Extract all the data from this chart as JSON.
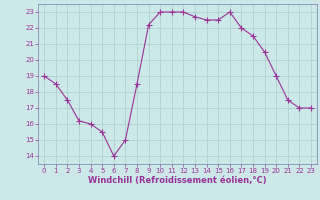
{
  "x": [
    0,
    1,
    2,
    3,
    4,
    5,
    6,
    7,
    8,
    9,
    10,
    11,
    12,
    13,
    14,
    15,
    16,
    17,
    18,
    19,
    20,
    21,
    22,
    23
  ],
  "y": [
    19,
    18.5,
    17.5,
    16.2,
    16.0,
    15.5,
    14.0,
    15.0,
    18.5,
    22.2,
    23.0,
    23.0,
    23.0,
    22.7,
    22.5,
    22.5,
    23.0,
    22.0,
    21.5,
    20.5,
    19.0,
    17.5,
    17.0,
    17.0
  ],
  "line_color": "#993399",
  "marker": "+",
  "marker_size": 4,
  "bg_color": "#cce8e8",
  "grid_color": "#aacccc",
  "xlabel": "Windchill (Refroidissement éolien,°C)",
  "ylim": [
    13.5,
    23.5
  ],
  "xlim": [
    -0.5,
    23.5
  ],
  "yticks": [
    14,
    15,
    16,
    17,
    18,
    19,
    20,
    21,
    22,
    23
  ],
  "xticks": [
    0,
    1,
    2,
    3,
    4,
    5,
    6,
    7,
    8,
    9,
    10,
    11,
    12,
    13,
    14,
    15,
    16,
    17,
    18,
    19,
    20,
    21,
    22,
    23
  ],
  "tick_fontsize": 5.0,
  "xlabel_fontsize": 6.0,
  "tick_color": "#993399",
  "spine_color": "#7a7aaa",
  "linewidth": 0.8,
  "marker_linewidth": 0.8
}
